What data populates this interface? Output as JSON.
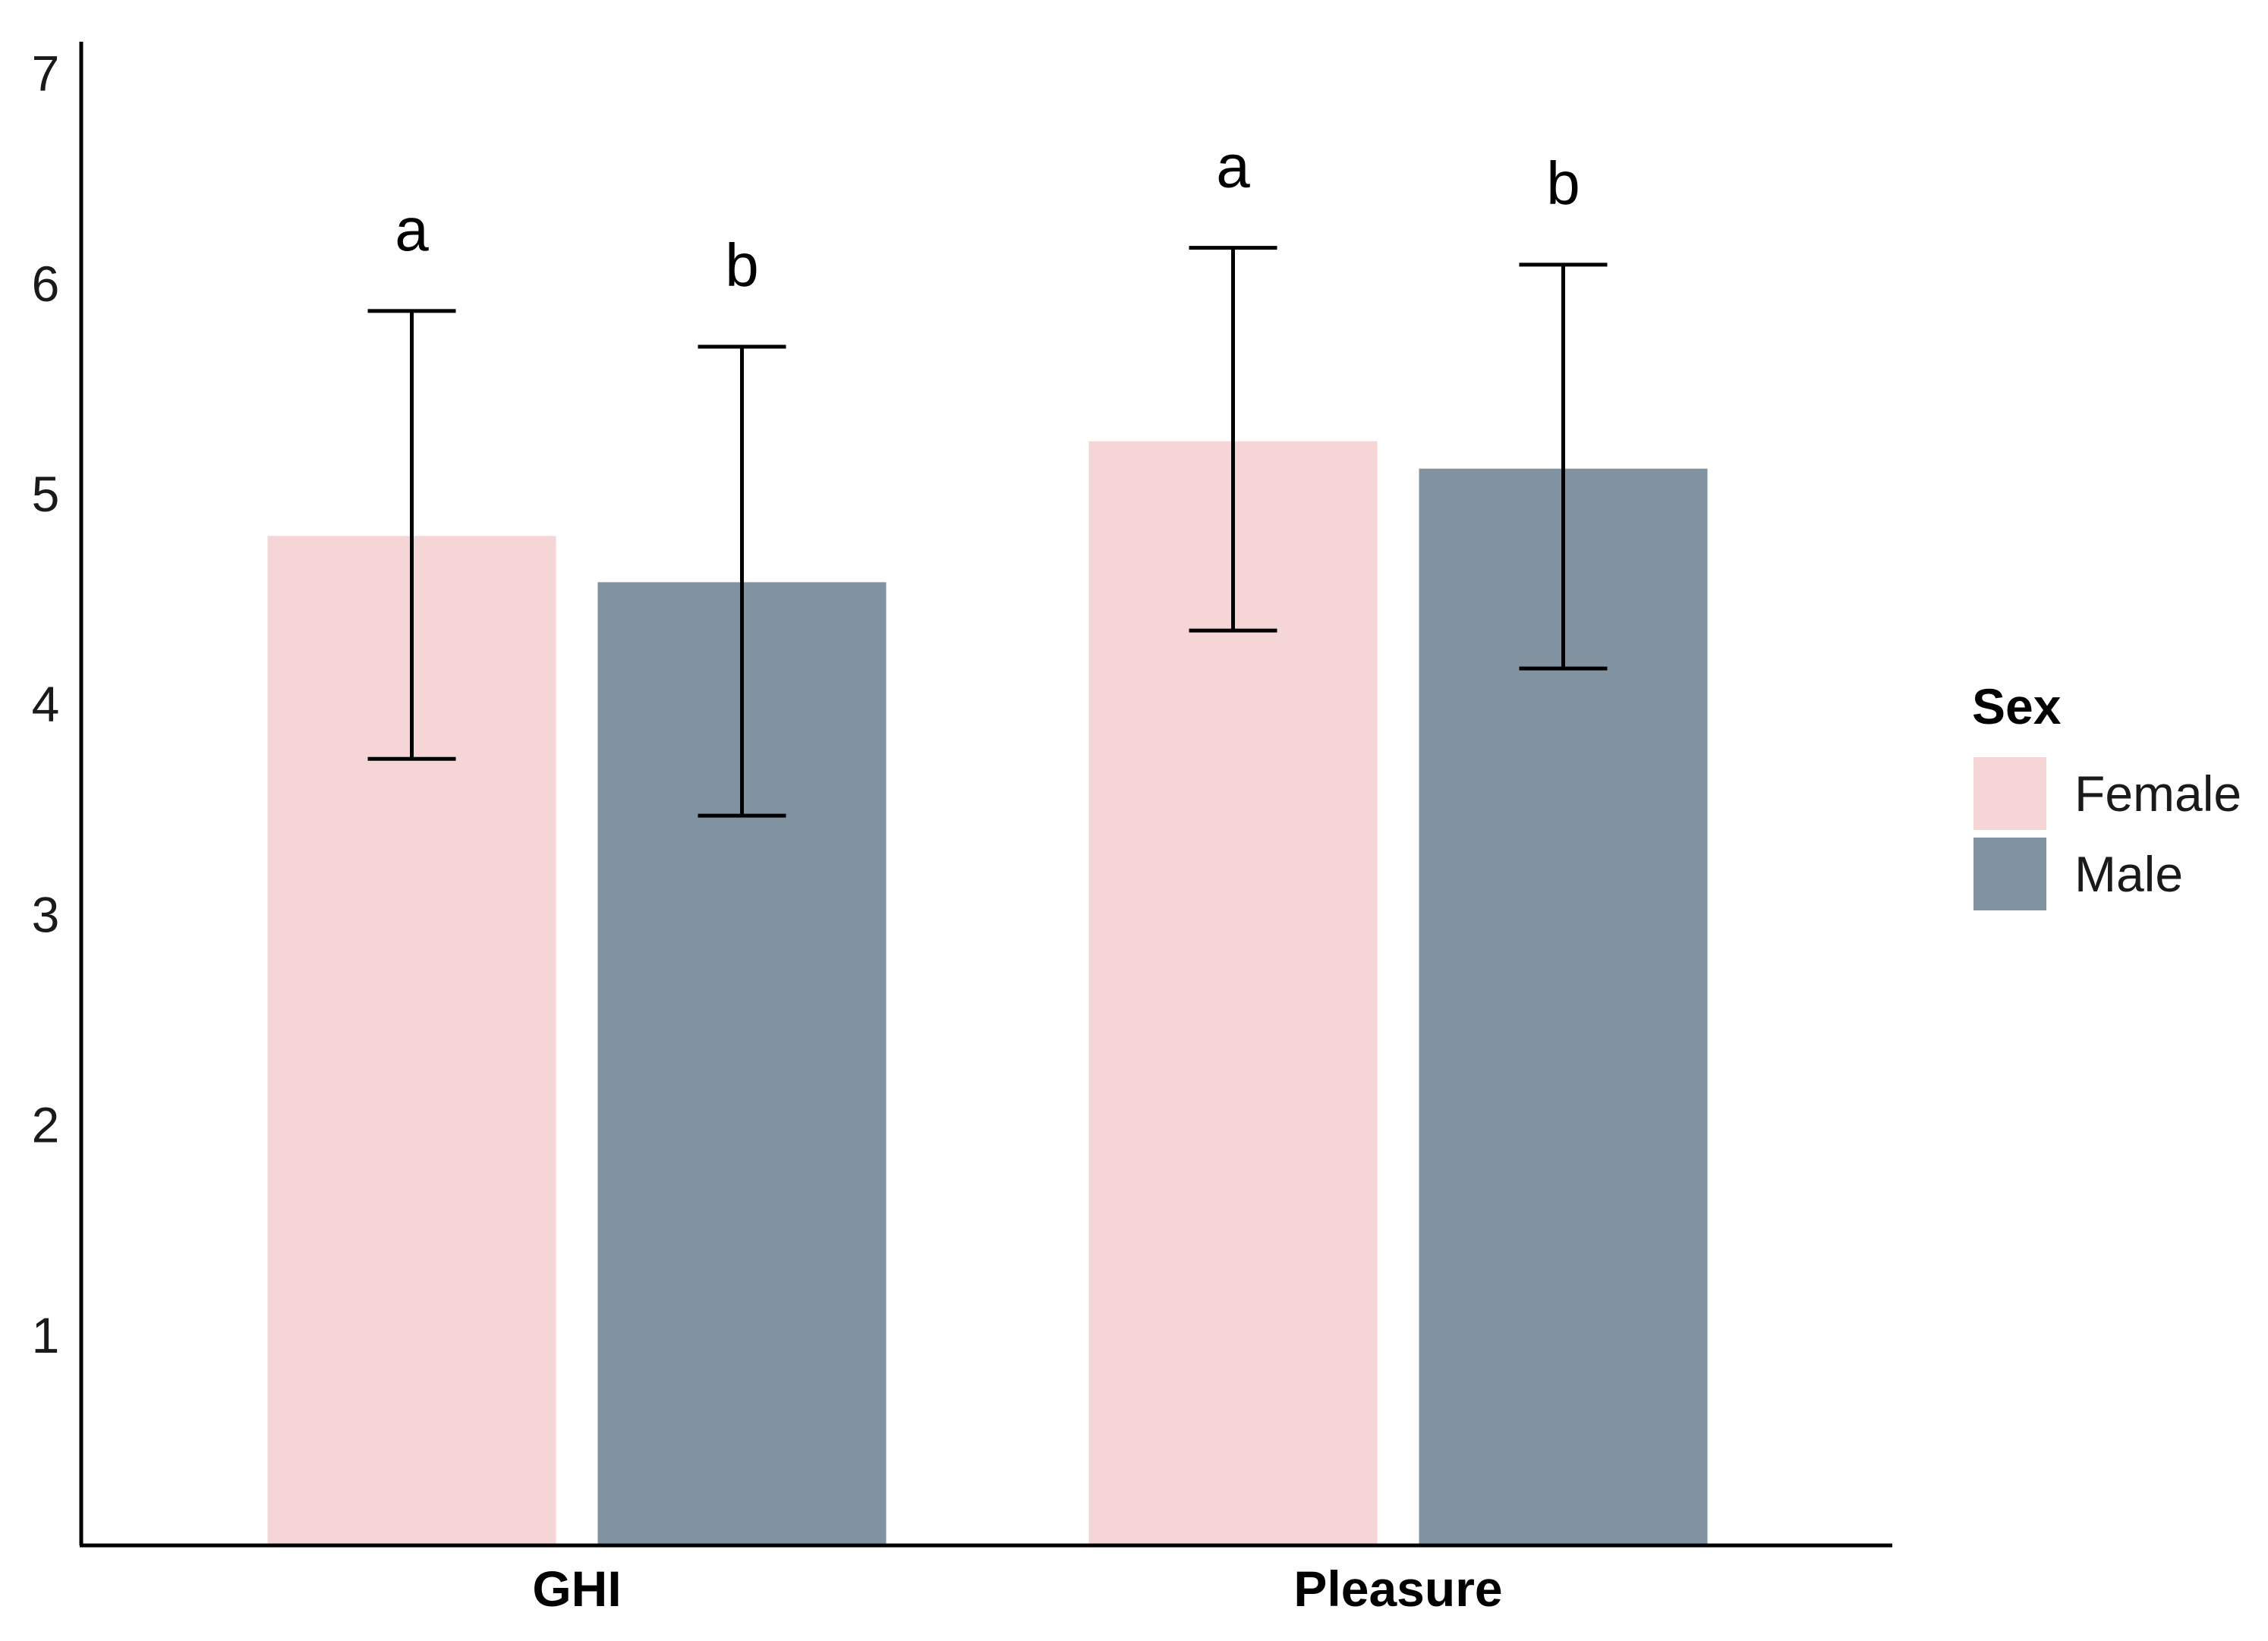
{
  "chart_data": {
    "type": "bar",
    "title": "",
    "xlabel": "",
    "ylabel": "",
    "categories": [
      "GHI",
      "Pleasure"
    ],
    "ylim": [
      0,
      7.15
    ],
    "yticks": [
      1,
      2,
      3,
      4,
      5,
      6,
      7
    ],
    "grid": false,
    "legend": {
      "title": "Sex",
      "placement": "right"
    },
    "series": [
      {
        "name": "Female",
        "color": "#f5d5d5",
        "values": [
          4.8,
          5.25
        ],
        "error_low": [
          3.74,
          4.35
        ],
        "error_high": [
          5.87,
          6.17
        ],
        "sig_labels": [
          "a",
          "a"
        ]
      },
      {
        "name": "Male",
        "color": "#8192a1",
        "values": [
          4.58,
          5.12
        ],
        "error_low": [
          3.47,
          4.17
        ],
        "error_high": [
          5.7,
          6.09
        ],
        "sig_labels": [
          "b",
          "b"
        ]
      }
    ]
  }
}
